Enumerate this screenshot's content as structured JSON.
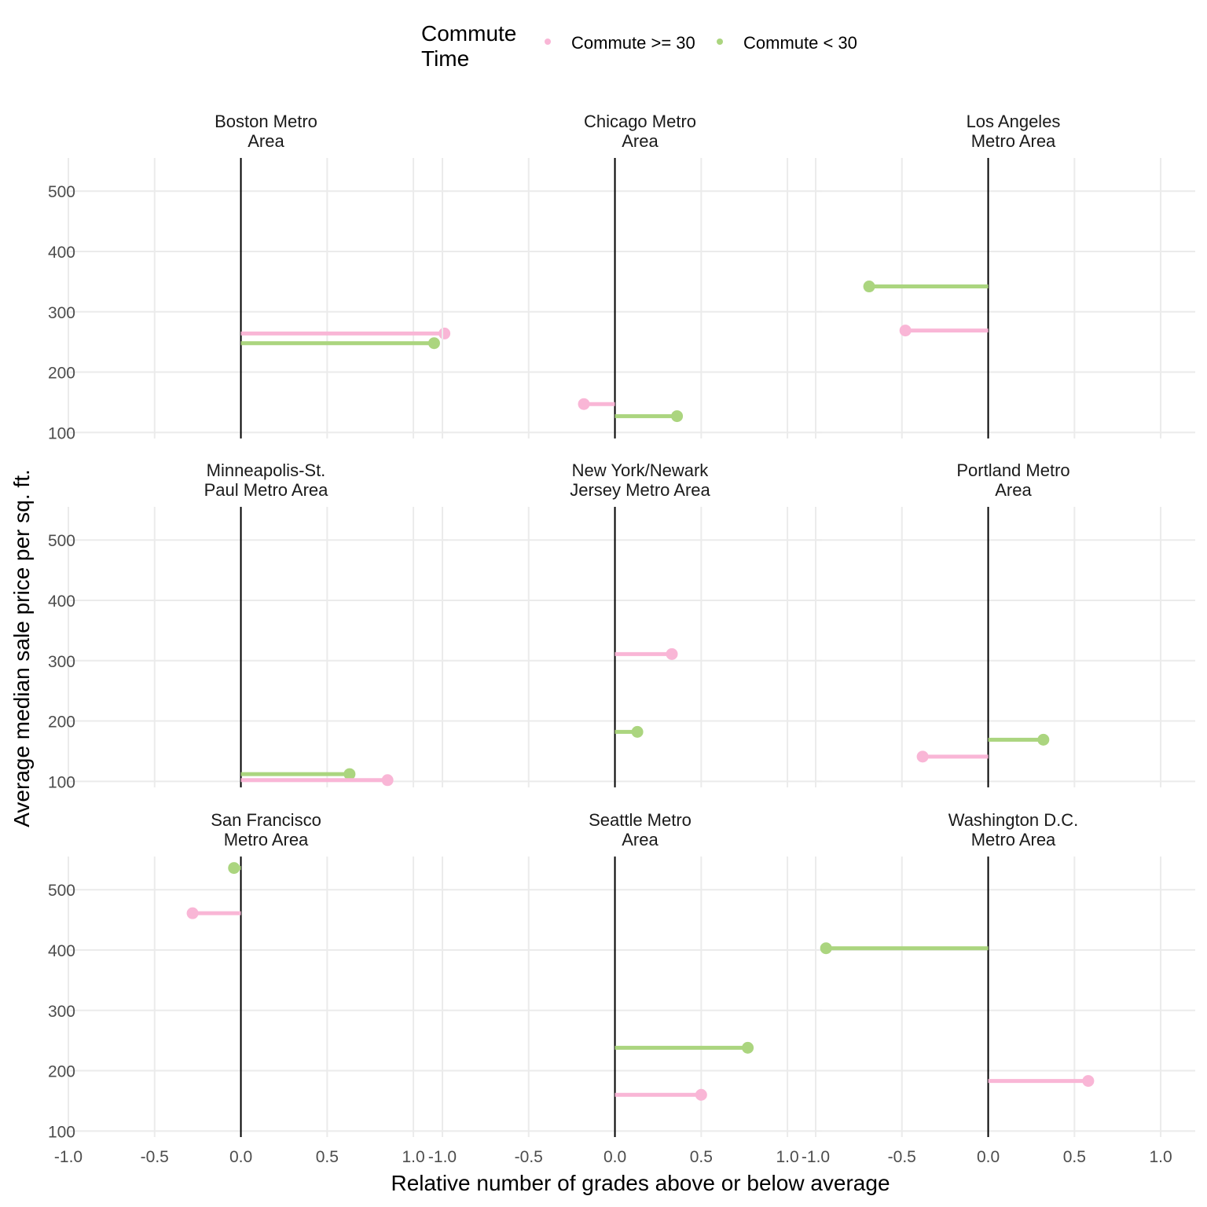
{
  "chart_data": {
    "type": "lollipop",
    "facet_layout": "3x3",
    "xlabel": "Relative number of grades above or below average",
    "ylabel": "Average median sale price per sq. ft.",
    "xlim": [
      -1.0,
      1.2
    ],
    "ylim": [
      90,
      555
    ],
    "x_ticks": [
      -1.0,
      -0.5,
      0.0,
      0.5,
      1.0
    ],
    "x_tick_labels": [
      "-1.0",
      "-0.5",
      "0.0",
      "0.5",
      "1.0"
    ],
    "y_ticks": [
      100,
      200,
      300,
      400,
      500
    ],
    "y_tick_labels": [
      "100",
      "200",
      "300",
      "400",
      "500"
    ],
    "grid": true,
    "legend": {
      "title": "Commute Time",
      "title_lines": [
        "Commute",
        "Time"
      ],
      "position": "top",
      "entries": [
        {
          "label": "Commute >= 30",
          "color": "#F9B6D6"
        },
        {
          "label": "Commute < 30",
          "color": "#ABD57F"
        }
      ]
    },
    "facets": [
      {
        "title_lines": [
          "Boston Metro",
          "Area"
        ],
        "points": [
          {
            "series": "Commute >= 30",
            "x": 1.18,
            "y": 264
          },
          {
            "series": "Commute < 30",
            "x": 1.12,
            "y": 248
          }
        ]
      },
      {
        "title_lines": [
          "Chicago Metro",
          "Area"
        ],
        "points": [
          {
            "series": "Commute >= 30",
            "x": -0.18,
            "y": 147
          },
          {
            "series": "Commute < 30",
            "x": 0.36,
            "y": 127
          }
        ]
      },
      {
        "title_lines": [
          "Los Angeles",
          "Metro Area"
        ],
        "points": [
          {
            "series": "Commute < 30",
            "x": -0.69,
            "y": 342
          },
          {
            "series": "Commute >= 30",
            "x": -0.48,
            "y": 269
          }
        ]
      },
      {
        "title_lines": [
          "Minneapolis-St.",
          "Paul Metro Area"
        ],
        "points": [
          {
            "series": "Commute < 30",
            "x": 0.63,
            "y": 112
          },
          {
            "series": "Commute >= 30",
            "x": 0.85,
            "y": 102
          }
        ]
      },
      {
        "title_lines": [
          "New York/Newark",
          "Jersey Metro Area"
        ],
        "points": [
          {
            "series": "Commute >= 30",
            "x": 0.33,
            "y": 311
          },
          {
            "series": "Commute < 30",
            "x": 0.13,
            "y": 182
          }
        ]
      },
      {
        "title_lines": [
          "Portland Metro",
          "Area"
        ],
        "points": [
          {
            "series": "Commute < 30",
            "x": 0.32,
            "y": 169
          },
          {
            "series": "Commute >= 30",
            "x": -0.38,
            "y": 141
          }
        ]
      },
      {
        "title_lines": [
          "San Francisco",
          "Metro Area"
        ],
        "points": [
          {
            "series": "Commute < 30",
            "x": -0.04,
            "y": 536
          },
          {
            "series": "Commute >= 30",
            "x": -0.28,
            "y": 461
          }
        ]
      },
      {
        "title_lines": [
          "Seattle Metro",
          "Area"
        ],
        "points": [
          {
            "series": "Commute < 30",
            "x": 0.77,
            "y": 238
          },
          {
            "series": "Commute >= 30",
            "x": 0.5,
            "y": 160
          }
        ]
      },
      {
        "title_lines": [
          "Washington D.C.",
          "Metro Area"
        ],
        "points": [
          {
            "series": "Commute < 30",
            "x": -0.94,
            "y": 403
          },
          {
            "series": "Commute >= 30",
            "x": 0.58,
            "y": 183
          }
        ]
      }
    ]
  }
}
